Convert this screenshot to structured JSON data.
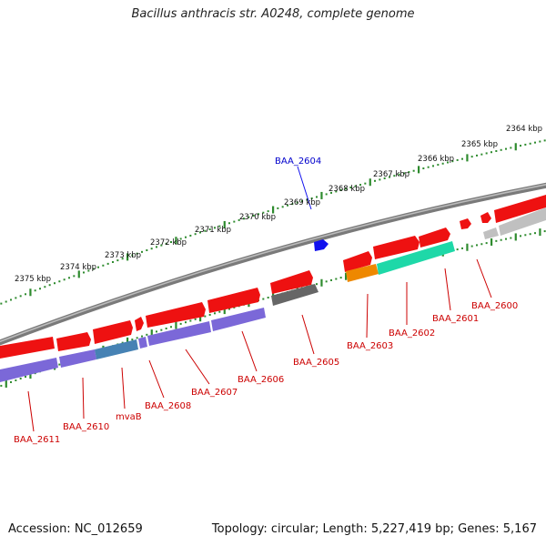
{
  "title": "Bacillus anthracis str. A0248, complete genome",
  "footer": {
    "accession": "Accession: NC_012659",
    "summary": "Topology: circular; Length: 5,227,419 bp; Genes: 5,167"
  },
  "colors": {
    "backbone": "#777777",
    "scale_dots": "#2e8b2e",
    "gene_red": "#ee1111",
    "gene_blue": "#1111ee",
    "label_red": "#cc0000",
    "label_blue": "#0000cc",
    "purple": "#7b68d8",
    "teal": "#4682b4",
    "green": "#1ed8a8",
    "orange": "#ee8800",
    "dark_gray": "#666666",
    "light_gray": "#c0c0c0"
  },
  "ticks": [
    {
      "text": "2364 kbp"
    },
    {
      "text": "2365 kbp"
    },
    {
      "text": "2366 kbp"
    },
    {
      "text": "2367 kbp"
    },
    {
      "text": "2368 kbp"
    },
    {
      "text": "2369 kbp"
    },
    {
      "text": "2370 kbp"
    },
    {
      "text": "2371 kbp"
    },
    {
      "text": "2372 kbp"
    },
    {
      "text": "2373 kbp"
    },
    {
      "text": "2374 kbp"
    },
    {
      "text": "2375 kbp"
    }
  ],
  "gene_labels": [
    {
      "text": "BAA_2604",
      "color": "blue"
    },
    {
      "text": "BAA_2600",
      "color": "red"
    },
    {
      "text": "BAA_2601",
      "color": "red"
    },
    {
      "text": "BAA_2602",
      "color": "red"
    },
    {
      "text": "BAA_2603",
      "color": "red"
    },
    {
      "text": "BAA_2605",
      "color": "red"
    },
    {
      "text": "BAA_2606",
      "color": "red"
    },
    {
      "text": "BAA_2607",
      "color": "red"
    },
    {
      "text": "BAA_2608",
      "color": "red"
    },
    {
      "text": "mvaB",
      "color": "red"
    },
    {
      "text": "BAA_2610",
      "color": "red"
    },
    {
      "text": "BAA_2611",
      "color": "red"
    }
  ]
}
